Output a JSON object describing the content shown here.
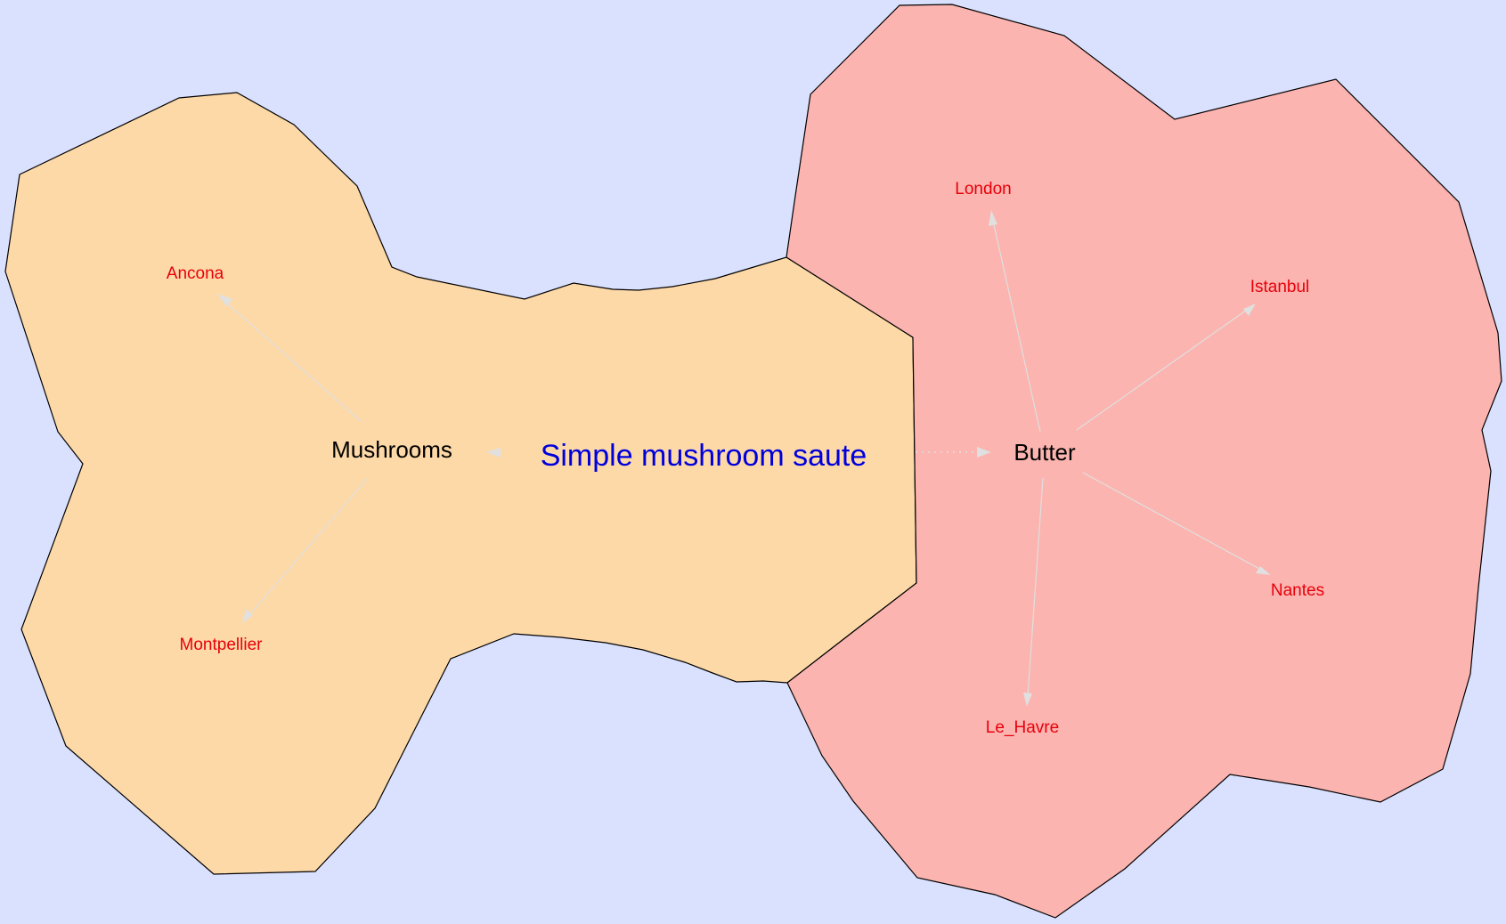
{
  "colors": {
    "background": "#dae1ff",
    "mushrooms_region": "#fdd9a8",
    "butter_region": "#fbb4af",
    "title_text": "#0000dd",
    "hub_text": "#000000",
    "city_text": "#e8000b",
    "edge": "#e0e0e0"
  },
  "title": "Simple mushroom saute",
  "hubs": {
    "mushrooms": "Mushrooms",
    "butter": "Butter"
  },
  "cities": {
    "ancona": "Ancona",
    "montpellier": "Montpellier",
    "london": "London",
    "istanbul": "Istanbul",
    "nantes": "Nantes",
    "le_havre": "Le_Havre"
  }
}
